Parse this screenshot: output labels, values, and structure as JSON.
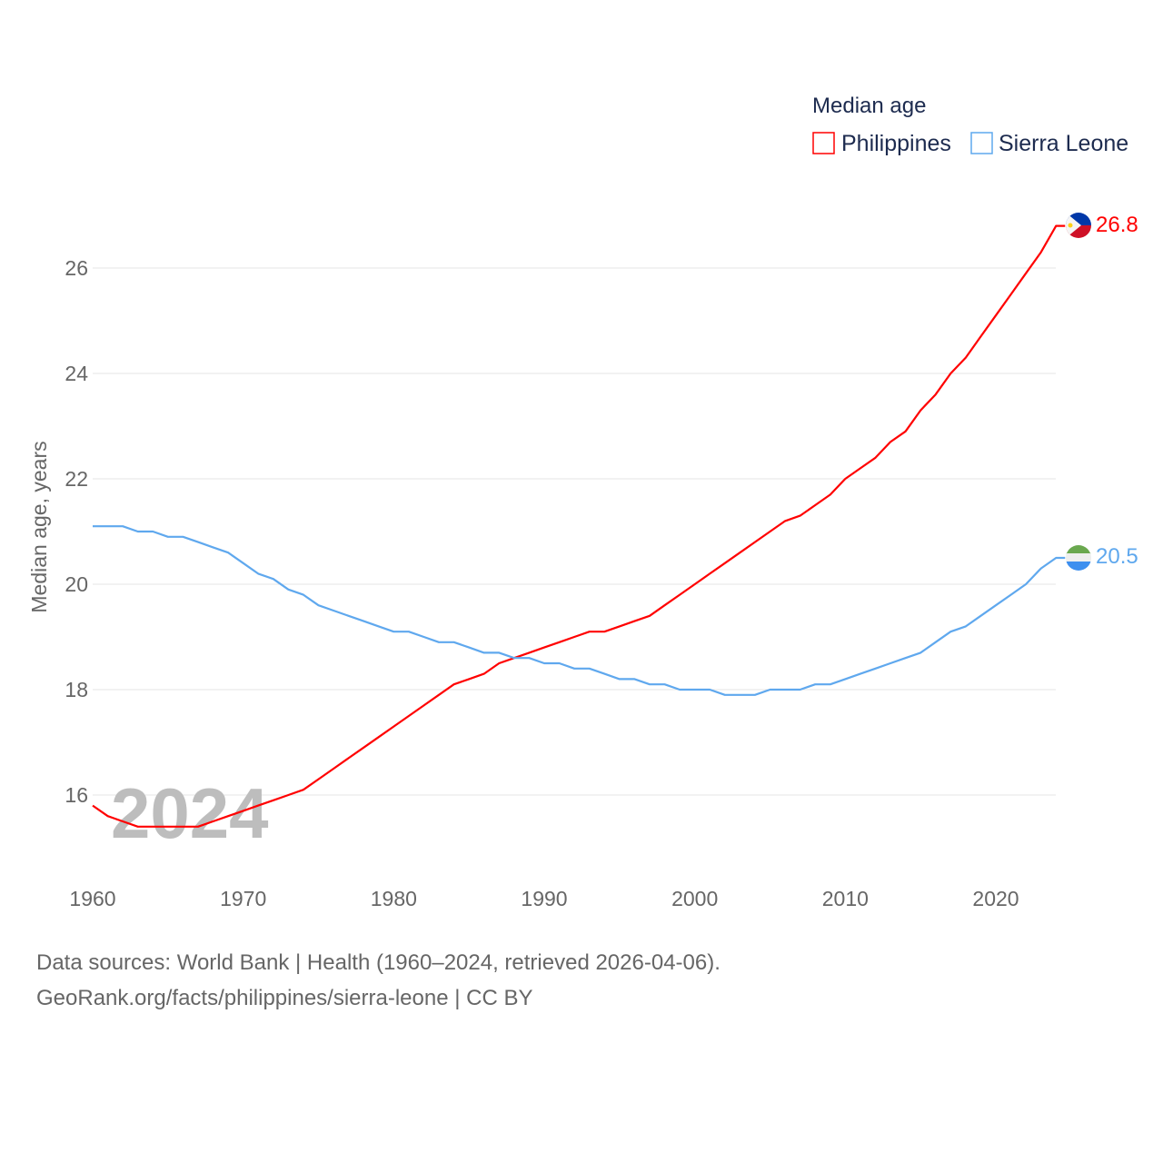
{
  "chart_data": {
    "type": "line",
    "title": "",
    "legend_title": "Median age",
    "legend_position": "top-right",
    "ylabel": "Median age, years",
    "xlabel": "",
    "xlim": [
      1960,
      2024
    ],
    "ylim": [
      15,
      27
    ],
    "x_ticks": [
      "1960",
      "1970",
      "1980",
      "1990",
      "2000",
      "2010",
      "2020"
    ],
    "y_ticks": [
      "16",
      "18",
      "20",
      "22",
      "24",
      "26"
    ],
    "grid": true,
    "watermark_year": "2024",
    "x": [
      1960,
      1961,
      1962,
      1963,
      1964,
      1965,
      1966,
      1967,
      1968,
      1969,
      1970,
      1971,
      1972,
      1973,
      1974,
      1975,
      1976,
      1977,
      1978,
      1979,
      1980,
      1981,
      1982,
      1983,
      1984,
      1985,
      1986,
      1987,
      1988,
      1989,
      1990,
      1991,
      1992,
      1993,
      1994,
      1995,
      1996,
      1997,
      1998,
      1999,
      2000,
      2001,
      2002,
      2003,
      2004,
      2005,
      2006,
      2007,
      2008,
      2009,
      2010,
      2011,
      2012,
      2013,
      2014,
      2015,
      2016,
      2017,
      2018,
      2019,
      2020,
      2021,
      2022,
      2023,
      2024
    ],
    "series": [
      {
        "name": "Philippines",
        "color": "#ff0000",
        "end_label": "26.8",
        "values": [
          15.8,
          15.6,
          15.5,
          15.4,
          15.4,
          15.4,
          15.4,
          15.4,
          15.5,
          15.6,
          15.7,
          15.8,
          15.9,
          16.0,
          16.1,
          16.3,
          16.5,
          16.7,
          16.9,
          17.1,
          17.3,
          17.5,
          17.7,
          17.9,
          18.1,
          18.2,
          18.3,
          18.5,
          18.6,
          18.7,
          18.8,
          18.9,
          19.0,
          19.1,
          19.1,
          19.2,
          19.3,
          19.4,
          19.6,
          19.8,
          20.0,
          20.2,
          20.4,
          20.6,
          20.8,
          21.0,
          21.2,
          21.3,
          21.5,
          21.7,
          22.0,
          22.2,
          22.4,
          22.7,
          22.9,
          23.3,
          23.6,
          24.0,
          24.3,
          24.7,
          25.1,
          25.5,
          25.9,
          26.3,
          26.8
        ]
      },
      {
        "name": "Sierra Leone",
        "color": "#5fa8ee",
        "end_label": "20.5",
        "values": [
          21.1,
          21.1,
          21.1,
          21.0,
          21.0,
          20.9,
          20.9,
          20.8,
          20.7,
          20.6,
          20.4,
          20.2,
          20.1,
          19.9,
          19.8,
          19.6,
          19.5,
          19.4,
          19.3,
          19.2,
          19.1,
          19.1,
          19.0,
          18.9,
          18.9,
          18.8,
          18.7,
          18.7,
          18.6,
          18.6,
          18.5,
          18.5,
          18.4,
          18.4,
          18.3,
          18.2,
          18.2,
          18.1,
          18.1,
          18.0,
          18.0,
          18.0,
          17.9,
          17.9,
          17.9,
          18.0,
          18.0,
          18.0,
          18.1,
          18.1,
          18.2,
          18.3,
          18.4,
          18.5,
          18.6,
          18.7,
          18.9,
          19.1,
          19.2,
          19.4,
          19.6,
          19.8,
          20.0,
          20.3,
          20.5
        ]
      }
    ]
  },
  "footer": {
    "line1": "Data sources: World Bank | Health (1960–2024, retrieved 2026-04-06).",
    "line2": "GeoRank.org/facts/philippines/sierra-leone | CC BY"
  }
}
